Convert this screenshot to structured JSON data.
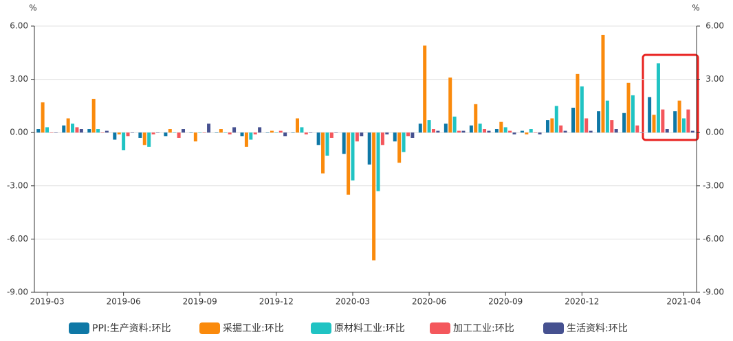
{
  "chart_data": {
    "type": "bar",
    "y_label": "%",
    "y2_label": "%",
    "categories": [
      "2019-03",
      null,
      null,
      "2019-06",
      null,
      null,
      "2019-09",
      null,
      null,
      "2019-12",
      null,
      null,
      "2020-03",
      null,
      null,
      "2020-06",
      null,
      null,
      "2020-09",
      null,
      null,
      "2020-12",
      null,
      null,
      null,
      "2021-04"
    ],
    "series": [
      {
        "name": "PPI:生产资料:环比",
        "color": "#0f78a6",
        "values": [
          0.2,
          0.4,
          0.2,
          -0.4,
          -0.3,
          -0.2,
          0,
          0,
          -0.2,
          0,
          0,
          -0.7,
          -1.2,
          -1.8,
          -0.5,
          0.5,
          0.5,
          0.4,
          0.2,
          0.1,
          0.7,
          1.4,
          1.2,
          1.1,
          2.0,
          1.2
        ]
      },
      {
        "name": "采掘工业:环比",
        "color": "#fa8a0c",
        "values": [
          1.7,
          0.8,
          1.9,
          -0.1,
          -0.7,
          0.2,
          -0.5,
          0.2,
          -0.8,
          0.1,
          0.8,
          -2.3,
          -3.5,
          -7.2,
          -1.7,
          4.9,
          3.1,
          1.6,
          0.6,
          -0.1,
          0.8,
          3.3,
          5.5,
          2.8,
          1.0,
          1.8
        ]
      },
      {
        "name": "原材料工业:环比",
        "color": "#20c3c3",
        "values": [
          0.3,
          0.5,
          0.2,
          -1.0,
          -0.8,
          0,
          0,
          0,
          -0.4,
          0,
          0.3,
          -1.3,
          -2.7,
          -3.3,
          -1.1,
          0.7,
          0.9,
          0.5,
          0.3,
          0.2,
          1.5,
          2.6,
          1.8,
          2.1,
          3.9,
          0.8
        ]
      },
      {
        "name": "加工工业:环比",
        "color": "#f4575c",
        "values": [
          0,
          0.3,
          0,
          -0.2,
          -0.1,
          -0.3,
          0,
          -0.1,
          -0.1,
          0.1,
          -0.1,
          -0.3,
          -0.5,
          -0.7,
          -0.2,
          0.2,
          0.1,
          0.2,
          0.1,
          0,
          0.4,
          0.8,
          0.7,
          0.4,
          1.3,
          1.3
        ]
      },
      {
        "name": "生活资料:环比",
        "color": "#465190",
        "values": [
          0,
          0.2,
          0.1,
          0,
          0,
          0.2,
          0.5,
          0.3,
          0.3,
          -0.2,
          0,
          0,
          -0.2,
          -0.1,
          -0.3,
          0.1,
          0.1,
          0.1,
          -0.1,
          -0.1,
          0.1,
          0.1,
          0.2,
          0,
          0.2,
          0.1
        ]
      }
    ],
    "ylim": [
      -9,
      6
    ],
    "yticks": [
      {
        "value": -9,
        "label": "-9.00"
      },
      {
        "value": -6,
        "label": "-6.00"
      },
      {
        "value": -3,
        "label": "-3.00"
      },
      {
        "value": 0,
        "label": "0.00"
      },
      {
        "value": 3,
        "label": "3.00"
      },
      {
        "value": 6,
        "label": "6.00"
      }
    ],
    "y2lim": [
      -9,
      6
    ],
    "y2ticks": [
      {
        "value": -9,
        "label": "-9.00"
      },
      {
        "value": -6,
        "label": "-6.00"
      },
      {
        "value": -3,
        "label": "-3.00"
      },
      {
        "value": 0,
        "label": "0.00"
      },
      {
        "value": 3,
        "label": "3.00"
      },
      {
        "value": 6,
        "label": "6.00"
      }
    ],
    "grid": true,
    "legend": "bottom"
  }
}
